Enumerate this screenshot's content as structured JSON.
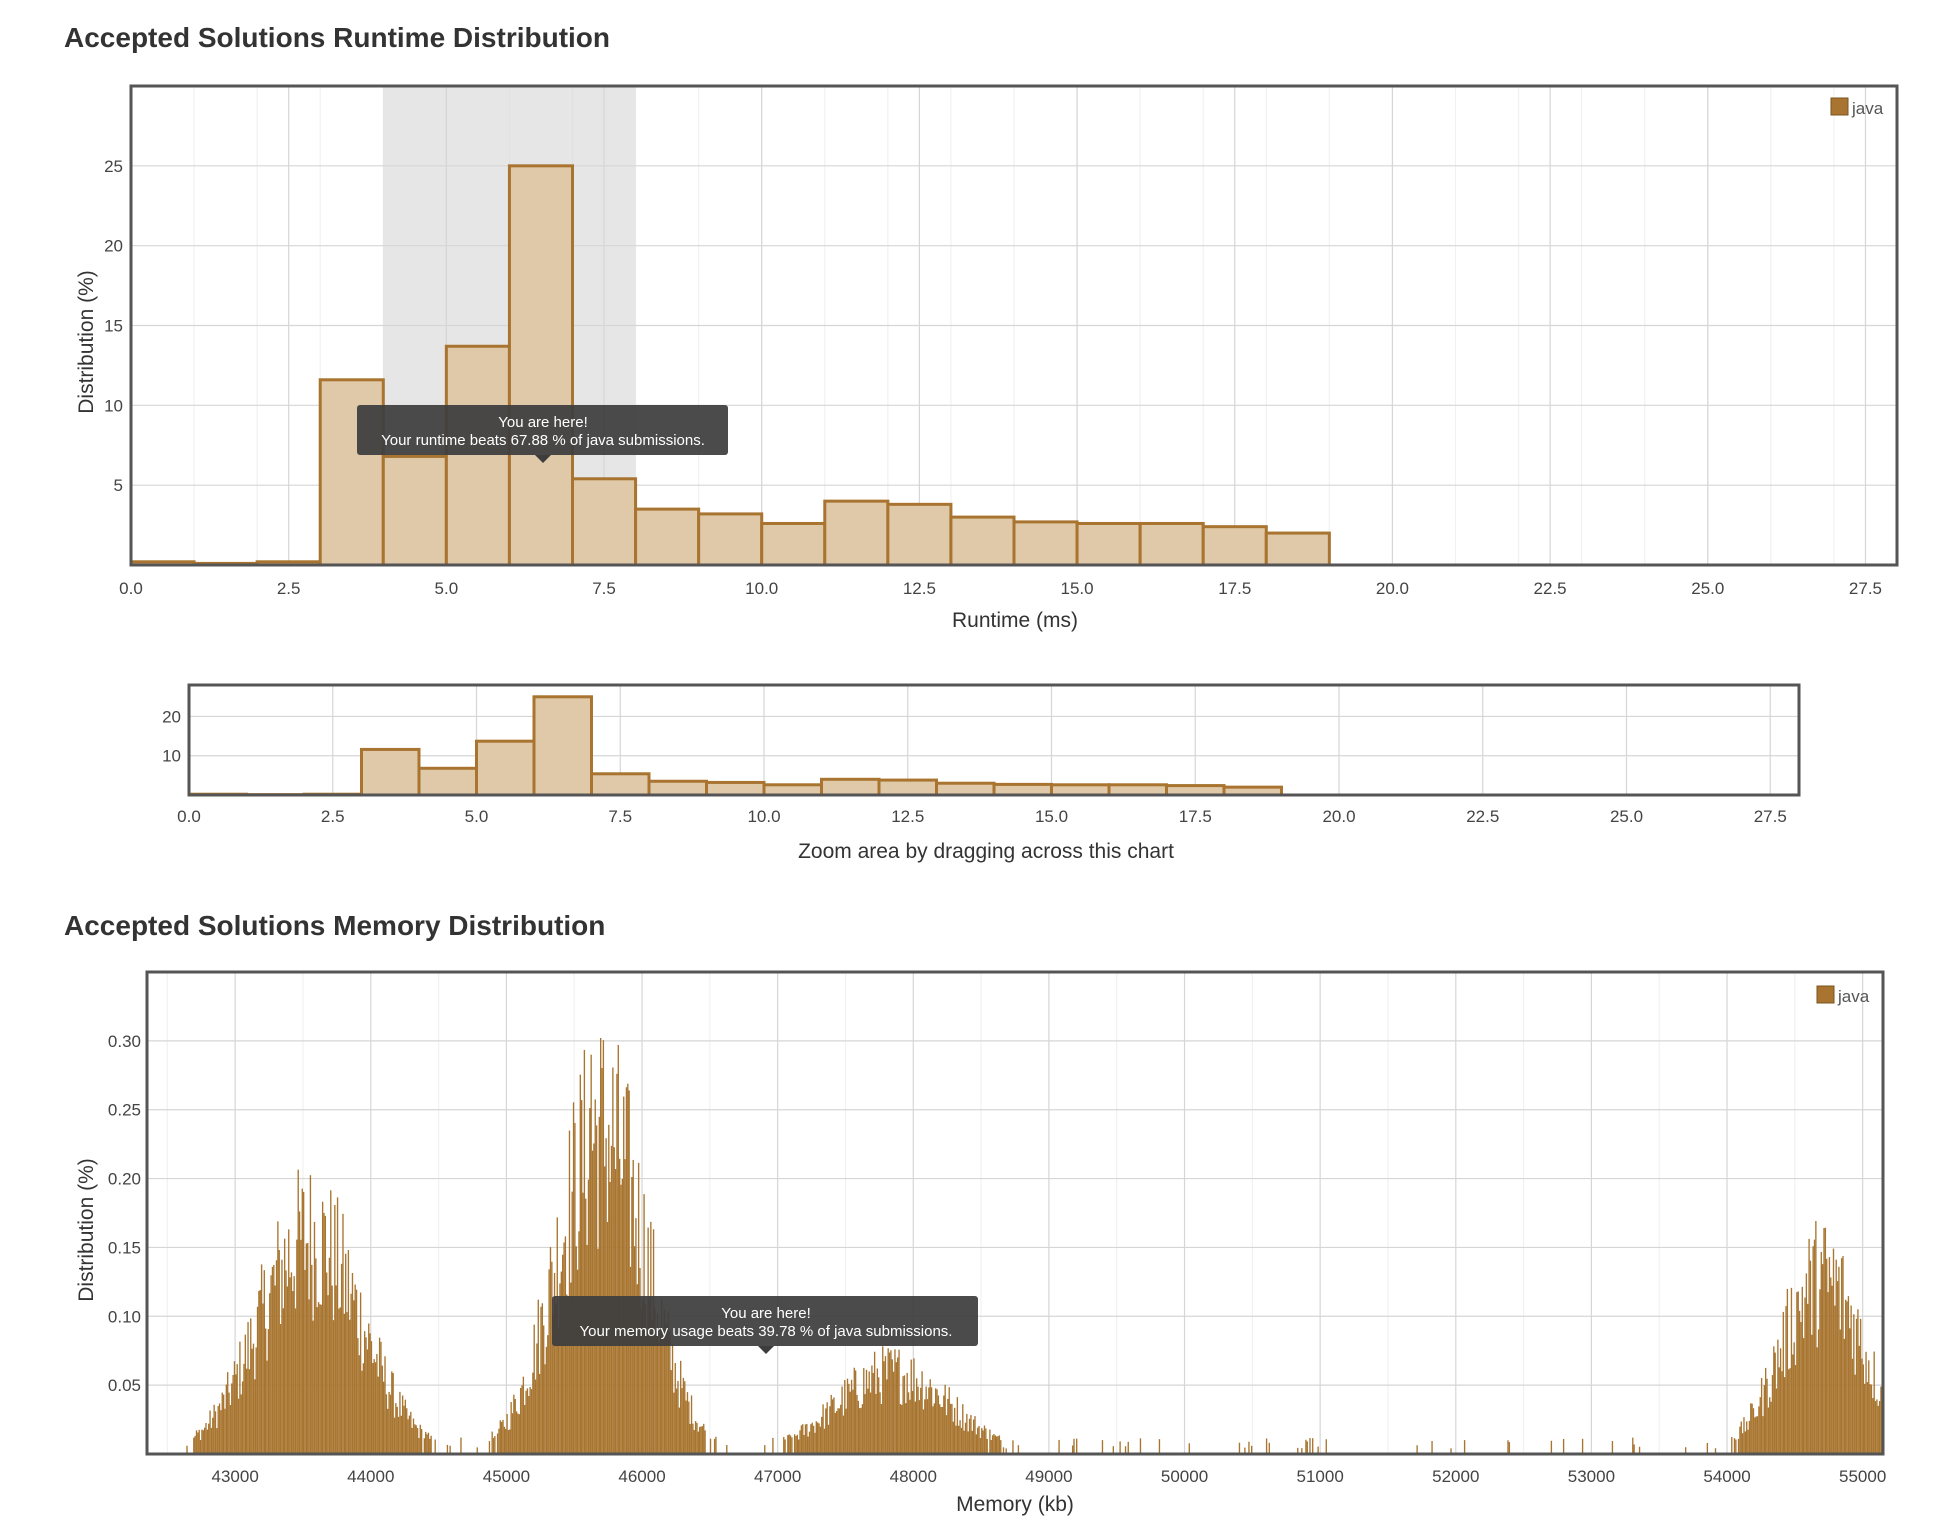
{
  "runtime_section": {
    "title": "Accepted Solutions Runtime Distribution",
    "tooltip_line1": "You are here!",
    "tooltip_line2": "Your runtime beats 67.88 % of java submissions."
  },
  "navigator": {
    "caption": "Zoom area by dragging across this chart"
  },
  "memory_section": {
    "title": "Accepted Solutions Memory Distribution",
    "tooltip_line1": "You are here!",
    "tooltip_line2": "Your memory usage beats 39.78 % of java submissions."
  },
  "colors": {
    "series_stroke": "#a8742f",
    "series_fill": "#dfc9a8",
    "memory_fill": "#a87530",
    "highlight_band": "#e6e6e6",
    "tooltip_bg": "#3d3d3d"
  },
  "chart_data": [
    {
      "type": "bar",
      "name": "runtime-histogram",
      "xlabel": "Runtime (ms)",
      "ylabel": "Distribution (%)",
      "xlim": [
        0,
        28
      ],
      "ylim": [
        0,
        30
      ],
      "x_ticks": [
        "0.0",
        "2.5",
        "5.0",
        "7.5",
        "10.0",
        "12.5",
        "15.0",
        "17.5",
        "20.0",
        "22.5",
        "25.0",
        "27.5"
      ],
      "y_ticks": [
        "5",
        "10",
        "15",
        "20",
        "25"
      ],
      "legend": {
        "label": "java",
        "position": "top-right"
      },
      "highlight_range": [
        4,
        8
      ],
      "bin_width": 1,
      "series": [
        {
          "name": "java",
          "x": [
            0,
            1,
            2,
            3,
            4,
            5,
            6,
            7,
            8,
            9,
            10,
            11,
            12,
            13,
            14,
            15,
            16,
            17,
            18
          ],
          "values": [
            0.2,
            0.1,
            0.2,
            11.6,
            6.8,
            13.7,
            25.0,
            5.4,
            3.5,
            3.2,
            2.6,
            4.0,
            3.8,
            3.0,
            2.7,
            2.6,
            2.6,
            2.4,
            2.0
          ]
        }
      ]
    },
    {
      "type": "bar",
      "name": "runtime-navigator",
      "xlabel": "Zoom area by dragging across this chart",
      "xlim": [
        0,
        28
      ],
      "ylim": [
        0,
        28
      ],
      "x_ticks": [
        "0.0",
        "2.5",
        "5.0",
        "7.5",
        "10.0",
        "12.5",
        "15.0",
        "17.5",
        "20.0",
        "22.5",
        "25.0",
        "27.5"
      ],
      "y_ticks": [
        "10",
        "20"
      ],
      "bin_width": 1,
      "series": [
        {
          "name": "java",
          "x": [
            0,
            1,
            2,
            3,
            4,
            5,
            6,
            7,
            8,
            9,
            10,
            11,
            12,
            13,
            14,
            15,
            16,
            17,
            18
          ],
          "values": [
            0.2,
            0.1,
            0.2,
            11.6,
            6.8,
            13.7,
            25.0,
            5.4,
            3.5,
            3.2,
            2.6,
            4.0,
            3.8,
            3.0,
            2.7,
            2.6,
            2.6,
            2.4,
            2.0
          ]
        }
      ]
    },
    {
      "type": "bar",
      "name": "memory-histogram",
      "xlabel": "Memory (kb)",
      "ylabel": "Distribution (%)",
      "xlim": [
        42350,
        55150
      ],
      "ylim": [
        0,
        0.35
      ],
      "x_ticks": [
        "43000",
        "44000",
        "45000",
        "46000",
        "47000",
        "48000",
        "49000",
        "50000",
        "51000",
        "52000",
        "53000",
        "54000",
        "55000"
      ],
      "y_ticks": [
        "0.05",
        "0.10",
        "0.15",
        "0.20",
        "0.25",
        "0.30"
      ],
      "legend": {
        "label": "java",
        "position": "top-right"
      },
      "bin_width": 10,
      "series": [
        {
          "name": "java",
          "peaks": [
            {
              "center": 43550,
              "height": 0.16
            },
            {
              "center": 45700,
              "height": 0.24
            },
            {
              "center": 47850,
              "height": 0.06
            },
            {
              "center": 54700,
              "height": 0.13
            }
          ],
          "max_value": 0.29,
          "max_at": 45620
        }
      ]
    }
  ]
}
